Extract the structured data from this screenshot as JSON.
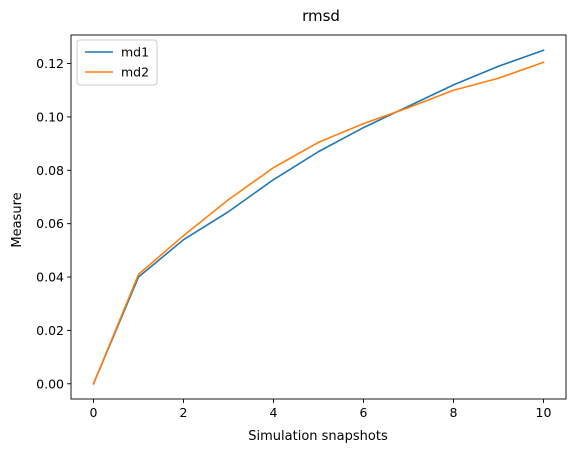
{
  "chart_data": {
    "type": "line",
    "title": "rmsd",
    "xlabel": "Simulation snapshots",
    "ylabel": "Measure",
    "x": [
      0,
      1,
      2,
      3,
      4,
      5,
      6,
      7,
      8,
      9,
      10
    ],
    "series": [
      {
        "name": "md1",
        "color": "#1f77b4",
        "values": [
          0.0,
          0.04,
          0.054,
          0.0645,
          0.0765,
          0.087,
          0.096,
          0.104,
          0.112,
          0.119,
          0.125
        ]
      },
      {
        "name": "md2",
        "color": "#ff7f0e",
        "values": [
          0.0,
          0.041,
          0.0555,
          0.069,
          0.081,
          0.0905,
          0.0975,
          0.1035,
          0.11,
          0.1145,
          0.1205
        ]
      }
    ],
    "xlim": [
      -0.5,
      10.5
    ],
    "ylim": [
      -0.0057,
      0.1307
    ],
    "xticks": [
      "0",
      "2",
      "4",
      "6",
      "8",
      "10"
    ],
    "yticks": [
      "0.00",
      "0.02",
      "0.04",
      "0.06",
      "0.08",
      "0.10",
      "0.12"
    ],
    "legend_position": "top-left",
    "grid": false
  }
}
